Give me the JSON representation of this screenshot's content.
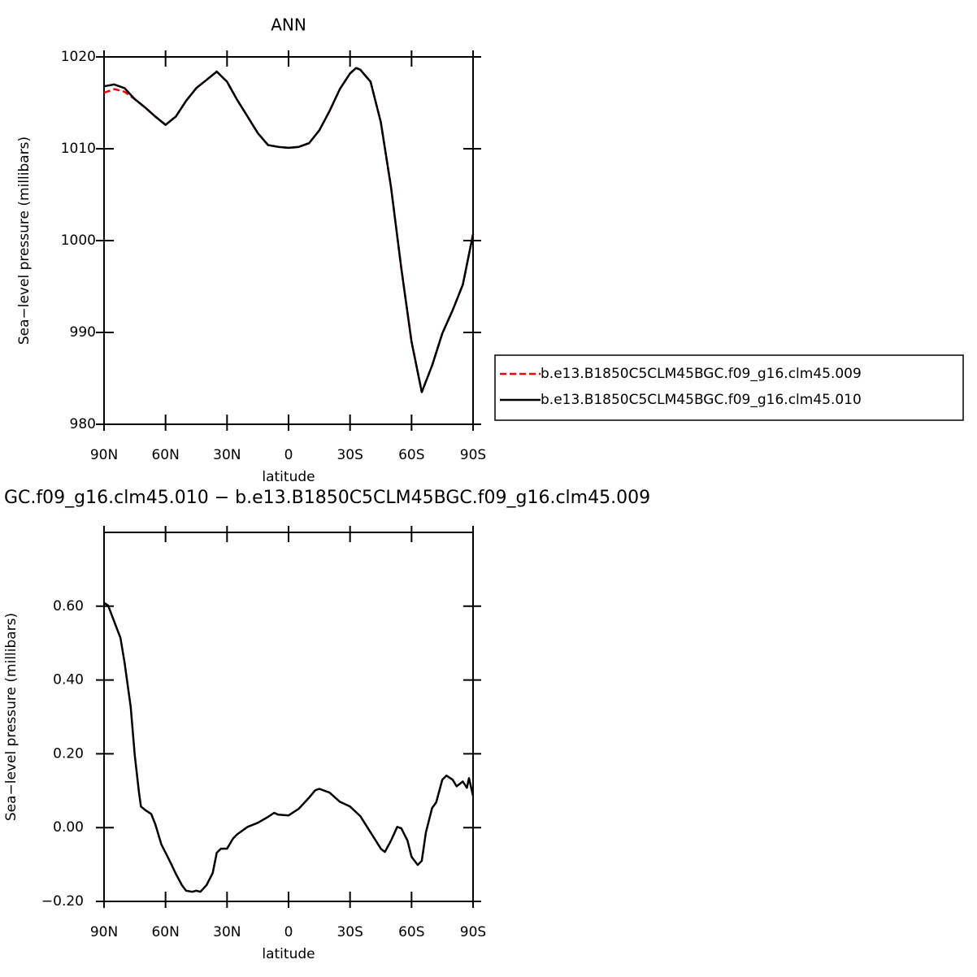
{
  "chart_data": [
    {
      "type": "line",
      "title": "ANN",
      "xlabel": "latitude",
      "ylabel": "Sea−level pressure (millibars)",
      "x": [
        90,
        85,
        80,
        75,
        70,
        65,
        60,
        55,
        50,
        45,
        40,
        35,
        30,
        25,
        20,
        15,
        10,
        5,
        0,
        -5,
        -10,
        -15,
        -20,
        -25,
        -30,
        -33,
        -35,
        -40,
        -45,
        -50,
        -55,
        -60,
        -65,
        -70,
        -75,
        -80,
        -85,
        -90
      ],
      "series": [
        {
          "name": "b.e13.B1850C5CLM45BGC.f09_g16.clm45.009",
          "color": "#ff0000",
          "dash": true,
          "values": [
            1016.1,
            1016.5,
            1016.2,
            1015.4,
            1014.5,
            1013.5,
            1012.6,
            1013.5,
            1015.2,
            1016.6,
            1017.5,
            1018.4,
            1017.3,
            1015.3,
            1013.5,
            1011.7,
            1010.4,
            1010.2,
            1010.1,
            1010.2,
            1010.6,
            1012.0,
            1014.1,
            1016.5,
            1018.2,
            1018.8,
            1018.6,
            1017.3,
            1012.9,
            1005.8,
            997.0,
            989.0,
            983.5,
            986.4,
            989.9,
            992.4,
            995.2,
            1000.7
          ]
        },
        {
          "name": "b.e13.B1850C5CLM45BGC.f09_g16.clm45.010",
          "color": "#000000",
          "dash": false,
          "values": [
            1016.8,
            1017.0,
            1016.6,
            1015.4,
            1014.5,
            1013.5,
            1012.6,
            1013.5,
            1015.2,
            1016.6,
            1017.5,
            1018.4,
            1017.3,
            1015.3,
            1013.5,
            1011.7,
            1010.4,
            1010.2,
            1010.1,
            1010.2,
            1010.6,
            1012.0,
            1014.1,
            1016.5,
            1018.2,
            1018.8,
            1018.6,
            1017.3,
            1012.9,
            1005.8,
            997.0,
            989.0,
            983.5,
            986.4,
            989.9,
            992.4,
            995.2,
            1000.7
          ]
        }
      ],
      "xlim": [
        90,
        -90
      ],
      "xticks": [
        {
          "value": 90,
          "label": "90N"
        },
        {
          "value": 60,
          "label": "60N"
        },
        {
          "value": 30,
          "label": "30N"
        },
        0,
        {
          "value": -30,
          "label": "30S"
        },
        {
          "value": -60,
          "label": "60S"
        },
        {
          "value": -90,
          "label": "90S"
        }
      ],
      "ylim": [
        980,
        1020
      ],
      "yticks": [
        980,
        990,
        1000,
        1010,
        1020
      ],
      "legend": "right"
    },
    {
      "type": "line",
      "title": "GC.f09_g16.clm45.010 − b.e13.B1850C5CLM45BGC.f09_g16.clm45.009",
      "xlabel": "latitude",
      "ylabel": "Sea−level pressure (millibars)",
      "x": [
        90,
        88,
        85,
        82,
        80,
        77,
        75,
        73,
        72,
        70,
        67,
        65,
        62,
        60,
        57,
        55,
        52,
        50,
        47,
        45,
        43,
        40,
        37,
        35,
        33,
        30,
        27,
        25,
        20,
        15,
        10,
        7,
        5,
        0,
        -5,
        -10,
        -13,
        -15,
        -20,
        -25,
        -30,
        -35,
        -40,
        -45,
        -47,
        -50,
        -53,
        -55,
        -58,
        -60,
        -63,
        -65,
        -67,
        -70,
        -72,
        -75,
        -77,
        -80,
        -82,
        -85,
        -87,
        -88,
        -90
      ],
      "series": [
        {
          "color": "#000000",
          "dash": false,
          "values": [
            0.609,
            0.602,
            0.558,
            0.514,
            0.448,
            0.327,
            0.196,
            0.097,
            0.057,
            0.048,
            0.037,
            0.009,
            -0.046,
            -0.068,
            -0.101,
            -0.125,
            -0.156,
            -0.171,
            -0.174,
            -0.171,
            -0.174,
            -0.156,
            -0.123,
            -0.068,
            -0.057,
            -0.057,
            -0.029,
            -0.018,
            0.002,
            0.013,
            0.029,
            0.04,
            0.035,
            0.033,
            0.051,
            0.081,
            0.101,
            0.105,
            0.095,
            0.07,
            0.057,
            0.031,
            -0.013,
            -0.057,
            -0.066,
            -0.035,
            0.002,
            -0.002,
            -0.035,
            -0.079,
            -0.101,
            -0.09,
            -0.013,
            0.053,
            0.068,
            0.13,
            0.141,
            0.13,
            0.112,
            0.125,
            0.108,
            0.134,
            0.086
          ]
        }
      ],
      "xlim": [
        90,
        -90
      ],
      "xticks": [
        {
          "value": 90,
          "label": "90N"
        },
        {
          "value": 60,
          "label": "60N"
        },
        {
          "value": 30,
          "label": "30N"
        },
        0,
        {
          "value": -30,
          "label": "30S"
        },
        {
          "value": -60,
          "label": "60S"
        },
        {
          "value": -90,
          "label": "90S"
        }
      ],
      "ylim": [
        -0.2,
        0.8
      ],
      "yticks": [
        {
          "value": -0.2,
          "label": "−0.20"
        },
        {
          "value": 0,
          "label": "0.00"
        },
        {
          "value": 0.2,
          "label": "0.20"
        },
        {
          "value": 0.4,
          "label": "0.40"
        },
        {
          "value": 0.6,
          "label": "0.60"
        }
      ]
    }
  ]
}
